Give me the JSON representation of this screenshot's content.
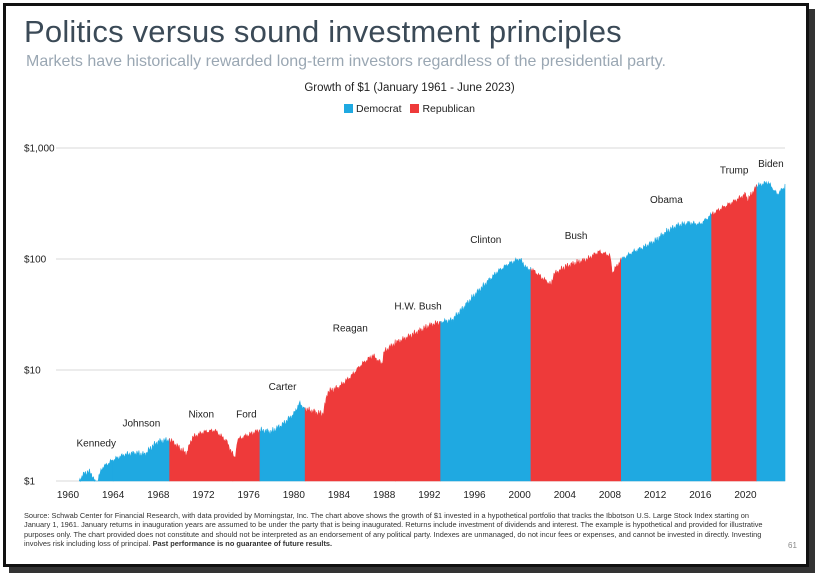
{
  "header": {
    "title": "Politics versus sound investment principles",
    "subtitle": "Markets have historically rewarded long-term investors regardless of the presidential party."
  },
  "colors": {
    "democrat": "#1fa9e1",
    "republican": "#ee3a3a",
    "grid": "#d9d9d9",
    "title": "#3b4a57",
    "subtitle": "#9aa7b3"
  },
  "chart_data": {
    "type": "area",
    "title": "Growth of $1 (January 1961 - June 2023)",
    "xlabel": "",
    "ylabel": "",
    "yscale": "log",
    "ylim": [
      1,
      1000
    ],
    "xlim": [
      1960,
      2023.5
    ],
    "y_ticks": [
      1,
      10,
      100,
      1000
    ],
    "y_tick_labels": [
      "$1",
      "$10",
      "$100",
      "$1,000"
    ],
    "x_ticks": [
      1960,
      1964,
      1968,
      1972,
      1976,
      1980,
      1984,
      1988,
      1992,
      1996,
      2000,
      2004,
      2008,
      2012,
      2016,
      2020
    ],
    "grid": "horizontal",
    "legend": [
      {
        "name": "Democrat",
        "color": "#1fa9e1"
      },
      {
        "name": "Republican",
        "color": "#ee3a3a"
      }
    ],
    "legend_position": "top-center",
    "series": [
      {
        "name": "Growth of $1",
        "x": [
          1961,
          1961.5,
          1962,
          1962.5,
          1963,
          1964,
          1965,
          1966,
          1966.8,
          1967.5,
          1968,
          1969,
          1970,
          1970.5,
          1971,
          1972,
          1973,
          1974,
          1974.8,
          1975,
          1976,
          1977,
          1978,
          1979,
          1980,
          1980.5,
          1981,
          1982,
          1982.6,
          1983,
          1984,
          1985,
          1986,
          1987,
          1987.8,
          1988,
          1989,
          1990,
          1991,
          1992,
          1993,
          1994,
          1995,
          1996,
          1997,
          1998,
          1999,
          2000,
          2000.7,
          2001,
          2002,
          2002.8,
          2003,
          2004,
          2005,
          2006,
          2007,
          2008,
          2008.2,
          2009,
          2010,
          2011,
          2012,
          2013,
          2014,
          2015,
          2016,
          2017,
          2018,
          2019,
          2020,
          2020.2,
          2021,
          2022,
          2022.8,
          2023.5
        ],
        "y": [
          1.0,
          1.18,
          1.2,
          0.92,
          1.3,
          1.55,
          1.72,
          1.78,
          1.72,
          2.05,
          2.25,
          2.35,
          1.92,
          1.75,
          2.45,
          2.75,
          2.85,
          2.3,
          1.55,
          2.35,
          2.6,
          2.85,
          2.75,
          3.2,
          4.0,
          5.0,
          4.45,
          4.1,
          4.0,
          6.3,
          7.0,
          8.6,
          11.2,
          13.5,
          11.2,
          14.5,
          17.5,
          19.5,
          22.0,
          25.0,
          27.0,
          28.0,
          36.0,
          47.0,
          60.0,
          76.0,
          90.0,
          100.0,
          80.0,
          82.0,
          67.0,
          58.0,
          72.0,
          84.0,
          92.0,
          99.0,
          116.0,
          107.0,
          75.0,
          98.0,
          115.0,
          127.0,
          145.0,
          175.0,
          200.0,
          210.0,
          205.0,
          250.0,
          290.0,
          330.0,
          380.0,
          340.0,
          450.0,
          490.0,
          380.0,
          450.0
        ]
      }
    ],
    "periods": [
      {
        "president": "Kennedy",
        "party": "Democrat",
        "start": 1961,
        "end": 1964
      },
      {
        "president": "Johnson",
        "party": "Democrat",
        "start": 1964,
        "end": 1969
      },
      {
        "president": "Nixon",
        "party": "Republican",
        "start": 1969,
        "end": 1974.6
      },
      {
        "president": "Ford",
        "party": "Republican",
        "start": 1974.6,
        "end": 1977
      },
      {
        "president": "Carter",
        "party": "Democrat",
        "start": 1977,
        "end": 1981
      },
      {
        "president": "Reagan",
        "party": "Republican",
        "start": 1981,
        "end": 1989
      },
      {
        "president": "H.W. Bush",
        "party": "Republican",
        "start": 1989,
        "end": 1993
      },
      {
        "president": "Clinton",
        "party": "Democrat",
        "start": 1993,
        "end": 2001
      },
      {
        "president": "Bush",
        "party": "Republican",
        "start": 2001,
        "end": 2009
      },
      {
        "president": "Obama",
        "party": "Democrat",
        "start": 2009,
        "end": 2017
      },
      {
        "president": "Trump",
        "party": "Republican",
        "start": 2017,
        "end": 2021
      },
      {
        "president": "Biden",
        "party": "Democrat",
        "start": 2021,
        "end": 2023.5
      }
    ]
  },
  "footnote": {
    "text": "Source: Schwab Center for Financial Research, with data provided by Morningstar, Inc. The chart above shows the growth of $1 invested in a hypothetical portfolio that tracks the Ibbotson U.S. Large Stock Index starting on January 1, 1961. January returns in inauguration years are assumed to be under the party that is being inaugurated. Returns include investment of dividends and interest. The example is hypothetical and provided for illustrative purposes only. The chart provided does not constitute and should not be interpreted as an endorsement of any political party. Indexes are unmanaged, do not incur fees or expenses, and cannot be invested in directly. Investing involves risk including loss of principal.",
    "bold": "Past performance is no guarantee of future results."
  },
  "page_number": "61"
}
